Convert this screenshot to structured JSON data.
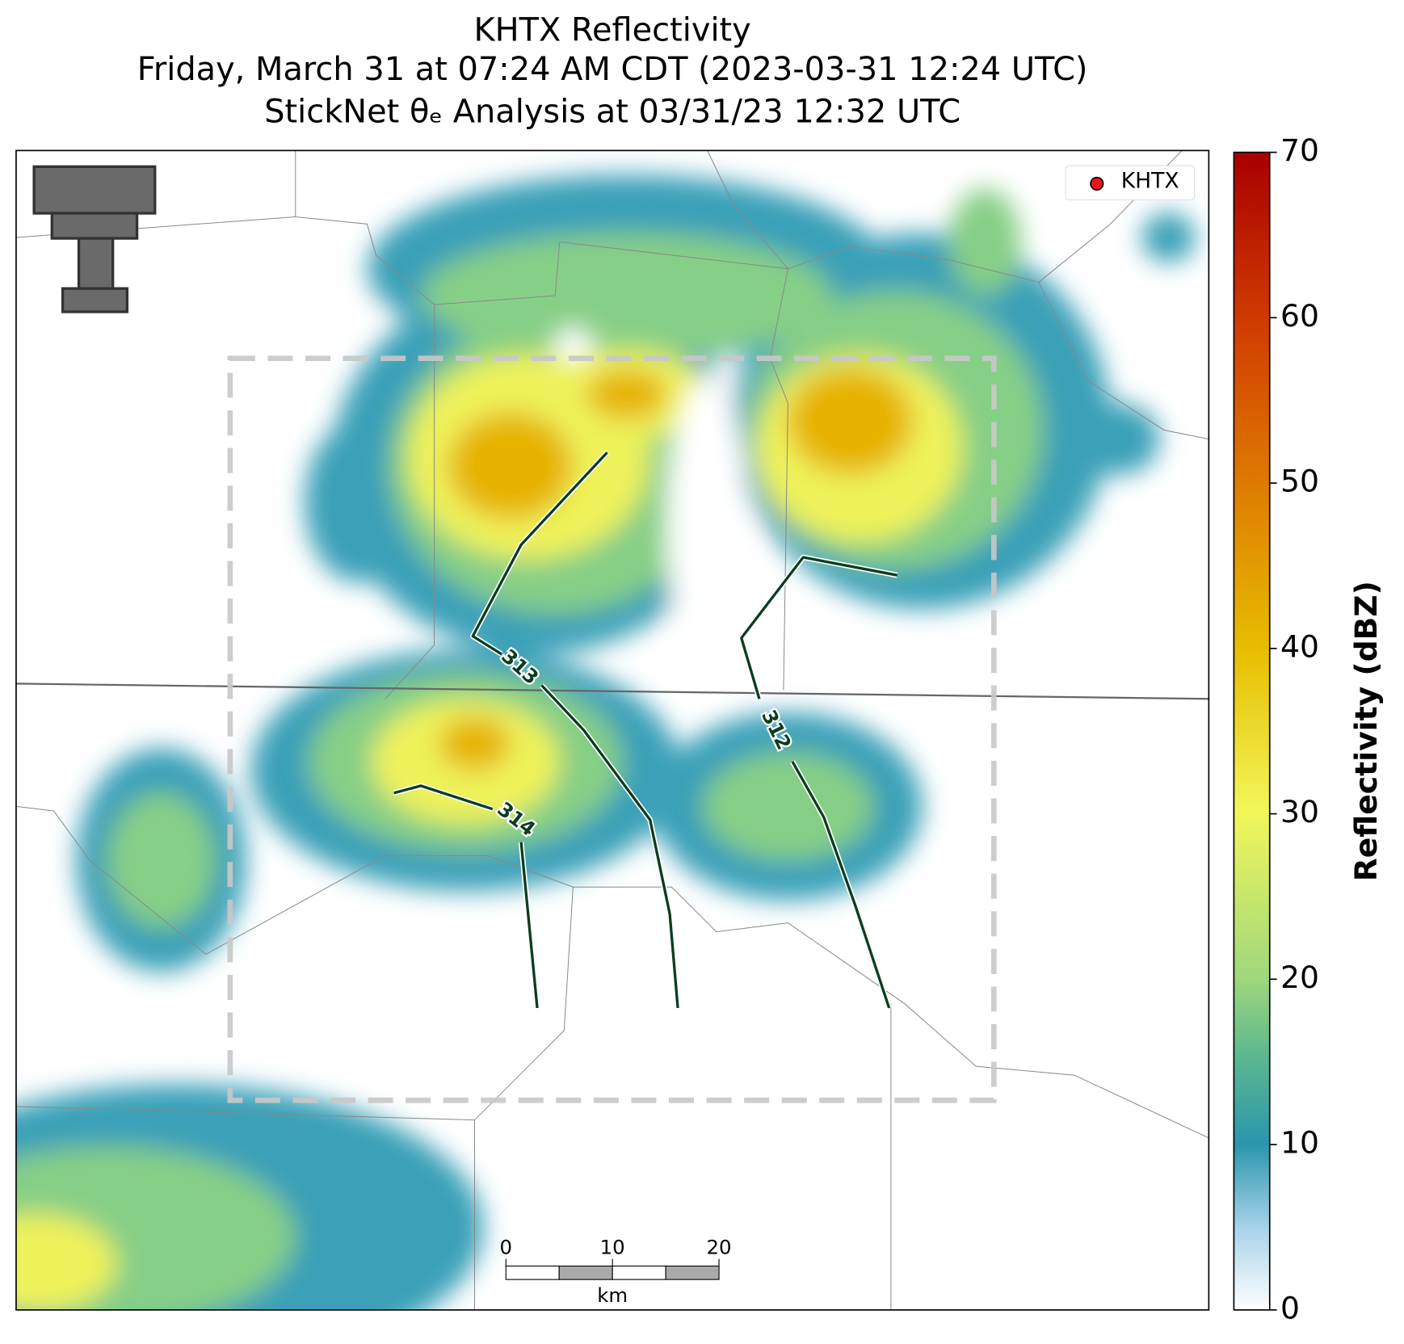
{
  "title": {
    "line1": "KHTX Reflectivity",
    "line2": "Friday, March 31 at 07:24 AM CDT (2023-03-31 12:24 UTC)",
    "line3": "StickNet θₑ Analysis at 03/31/23 12:32 UTC"
  },
  "legend": {
    "label": "KHTX",
    "color": "#e8141c"
  },
  "colorbar": {
    "label": "Reflectivity (dBZ)",
    "lim": [
      0,
      70
    ],
    "ticks": [
      0,
      10,
      20,
      30,
      40,
      50,
      60,
      70
    ]
  },
  "contours": [
    {
      "label": 313
    },
    {
      "label": 312
    },
    {
      "label": 314
    }
  ],
  "scalebar": {
    "lim": [
      0,
      20
    ],
    "ticks": [
      0,
      10,
      20
    ],
    "unit": "km"
  }
}
